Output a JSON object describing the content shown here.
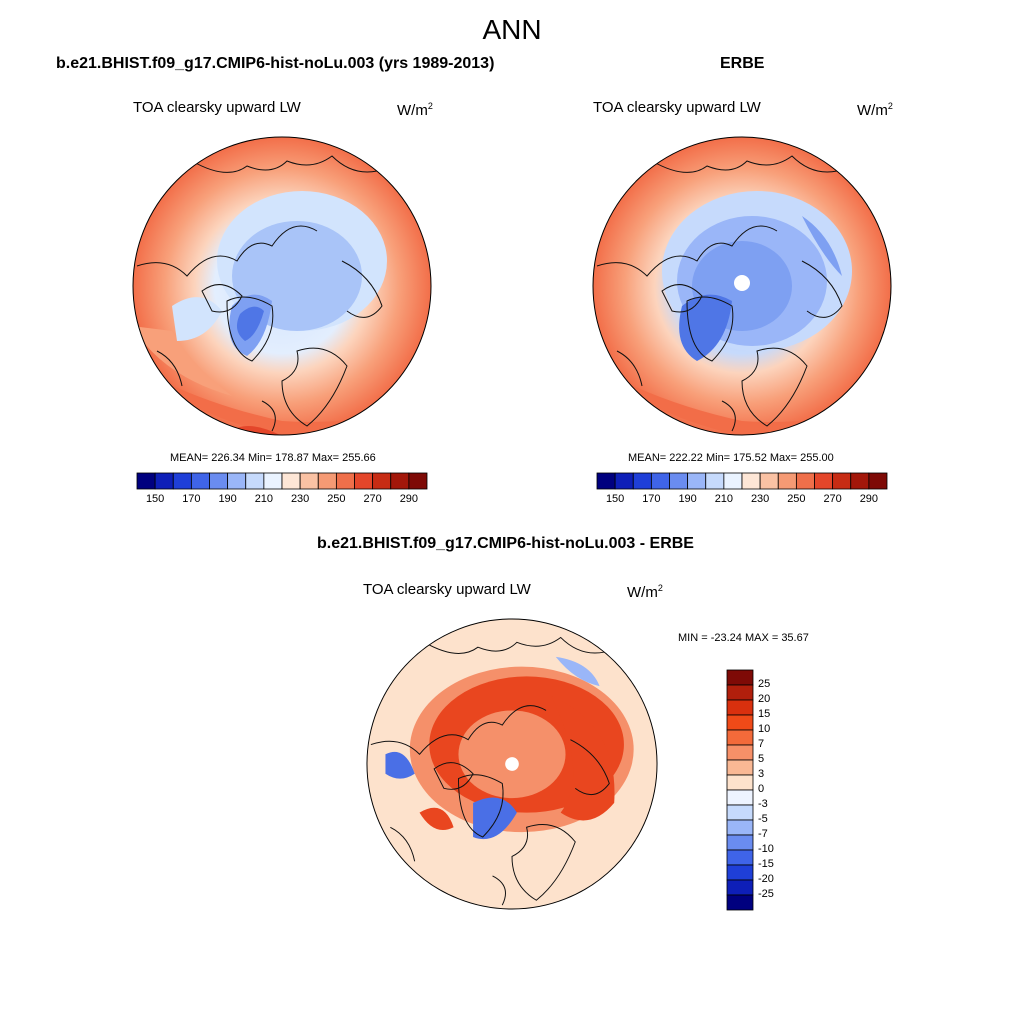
{
  "title": "ANN",
  "panels": [
    {
      "title": "b.e21.BHIST.f09_g17.CMIP6-hist-noLu.003 (yrs 1989-2013)",
      "variable": "TOA clearsky upward LW",
      "units_base": "W/m",
      "units_exp": "2",
      "stats": "MEAN= 226.34  Min= 178.87  Max= 255.66",
      "mean": 226.34,
      "min": 178.87,
      "max": 255.66
    },
    {
      "title": "ERBE",
      "variable": "TOA clearsky upward LW",
      "units_base": "W/m",
      "units_exp": "2",
      "stats": "MEAN= 222.22  Min= 175.52  Max= 255.00",
      "mean": 222.22,
      "min": 175.52,
      "max": 255.0
    },
    {
      "title": "b.e21.BHIST.f09_g17.CMIP6-hist-noLu.003 - ERBE",
      "variable": "TOA clearsky upward LW",
      "units_base": "W/m",
      "units_exp": "2",
      "stats": "MIN = -23.24 MAX =  35.67",
      "min": -23.24,
      "max": 35.67
    }
  ],
  "abs_colorbar": {
    "tick_labels": [
      "150",
      "170",
      "190",
      "210",
      "230",
      "250",
      "270",
      "290"
    ],
    "colors": [
      "#00007f",
      "#0e1fb8",
      "#1f3fd8",
      "#3f64e8",
      "#6a8cf0",
      "#9ab6f8",
      "#c6dafc",
      "#eaf3ff",
      "#fde6d6",
      "#fac2a4",
      "#f59a74",
      "#ef6f4a",
      "#e4462a",
      "#c72c14",
      "#a3170a",
      "#7e0a06"
    ]
  },
  "diff_colorbar": {
    "tick_labels": [
      "25",
      "20",
      "15",
      "10",
      "7",
      "5",
      "3",
      "0",
      "-3",
      "-5",
      "-7",
      "-10",
      "-15",
      "-20",
      "-25"
    ],
    "colors": [
      "#7e0a06",
      "#b11f0c",
      "#d9300e",
      "#ef4a18",
      "#f36a3a",
      "#f79068",
      "#f9b894",
      "#fde2cc",
      "#eef4ff",
      "#c6dafc",
      "#9ab6f8",
      "#6a8cf0",
      "#3f64e8",
      "#1f3fd8",
      "#0e1fb8",
      "#00007f"
    ]
  },
  "map_colors": {
    "ocean_far": "#f26d48",
    "ocean_mid": "#f8a07a",
    "ocean_near": "#fcd4bd",
    "arctic_light": "#d2e4fd",
    "arctic_mid": "#a9c4f8",
    "arctic_deep": "#7ea0f2",
    "greenland": "#4f76e6",
    "diff_bg": "#fde2cc",
    "diff_red": "#e9461f",
    "diff_red_light": "#f5906a",
    "diff_blue": "#4a6fe6"
  }
}
